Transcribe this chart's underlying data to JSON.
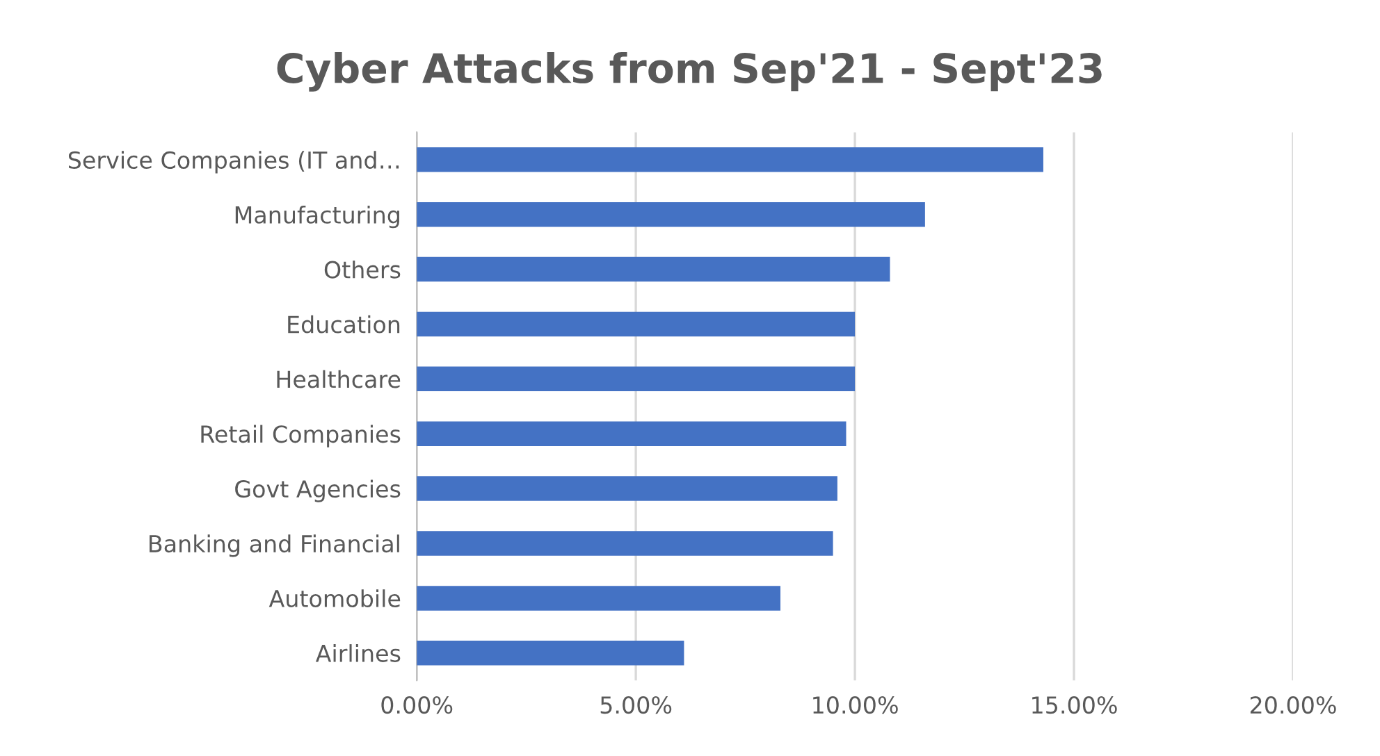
{
  "chart_data": {
    "type": "bar",
    "orientation": "horizontal",
    "title": "Cyber Attacks from Sep'21 - Sept'23",
    "categories": [
      "Service Companies (IT and…",
      "Manufacturing",
      "Others",
      "Education",
      "Healthcare",
      "Retail Companies",
      "Govt Agencies",
      "Banking and Financial",
      "Automobile",
      "Airlines"
    ],
    "values": [
      14.3,
      11.6,
      10.8,
      10.0,
      10.0,
      9.8,
      9.6,
      9.5,
      8.3,
      6.1
    ],
    "color": "#4472c4",
    "xlim": [
      0,
      20
    ],
    "xticks": [
      {
        "value": 0,
        "label": "0.00%"
      },
      {
        "value": 5,
        "label": "5.00%"
      },
      {
        "value": 10,
        "label": "10.00%"
      },
      {
        "value": 15,
        "label": "15.00%"
      },
      {
        "value": 20,
        "label": "20.00%"
      }
    ],
    "grid": "x",
    "legend": false
  }
}
